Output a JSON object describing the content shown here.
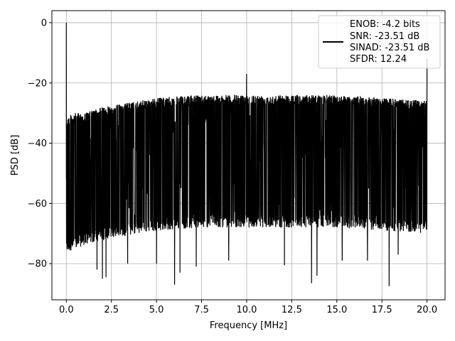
{
  "chart_data": {
    "type": "line",
    "title": "",
    "xlabel": "Frequency [MHz]",
    "ylabel": "PSD [dB]",
    "xlim": [
      -0.8,
      21.0
    ],
    "ylim": [
      -92.0,
      4.0
    ],
    "x_ticks": [
      0.0,
      2.5,
      5.0,
      7.5,
      10.0,
      12.5,
      15.0,
      17.5,
      20.0
    ],
    "x_tick_labels": [
      "0.0",
      "2.5",
      "5.0",
      "7.5",
      "10.0",
      "12.5",
      "15.0",
      "17.5",
      "20.0"
    ],
    "y_ticks": [
      0,
      -20,
      -40,
      -60,
      -80
    ],
    "y_tick_labels": [
      "0",
      "−20",
      "−40",
      "−60",
      "−80"
    ],
    "grid": true,
    "legend_position": "top-right",
    "legend_entries": [
      "ENOB: -4.2 bits",
      "SNR: -23.51 dB",
      "SINAD: -23.51 dB",
      "SFDR: 12.24"
    ],
    "series": [
      {
        "color": "#000000",
        "x_range": [
          0.0,
          20.0
        ],
        "noise_ceiling": [
          [
            0.05,
            -31
          ],
          [
            0.5,
            -30
          ],
          [
            1.0,
            -30
          ],
          [
            2.0,
            -28
          ],
          [
            3.0,
            -27
          ],
          [
            4.0,
            -26
          ],
          [
            5.0,
            -25
          ],
          [
            6.0,
            -24.5
          ],
          [
            7.5,
            -24
          ],
          [
            10.0,
            -24
          ],
          [
            12.5,
            -24
          ],
          [
            15.0,
            -24
          ],
          [
            17.5,
            -25
          ],
          [
            19.0,
            -25.5
          ],
          [
            20.0,
            -26
          ]
        ],
        "noise_floor": [
          [
            0.05,
            -76
          ],
          [
            2.0,
            -72
          ],
          [
            5.0,
            -69
          ],
          [
            7.5,
            -68
          ],
          [
            10.0,
            -68
          ],
          [
            12.5,
            -68
          ],
          [
            15.0,
            -68
          ],
          [
            17.5,
            -69
          ],
          [
            20.0,
            -70
          ]
        ],
        "spikes": [
          {
            "x": 0.0,
            "y": 0.0
          },
          {
            "x": 10.0,
            "y": -17
          },
          {
            "x": 20.0,
            "y": -12
          }
        ],
        "deep_dips": [
          {
            "x": 1.7,
            "y": -82
          },
          {
            "x": 2.0,
            "y": -85
          },
          {
            "x": 2.2,
            "y": -84.5
          },
          {
            "x": 3.4,
            "y": -80
          },
          {
            "x": 5.0,
            "y": -80
          },
          {
            "x": 6.0,
            "y": -87
          },
          {
            "x": 6.3,
            "y": -83
          },
          {
            "x": 7.2,
            "y": -81
          },
          {
            "x": 9.0,
            "y": -79
          },
          {
            "x": 10.0,
            "y": -78
          },
          {
            "x": 12.1,
            "y": -80.5
          },
          {
            "x": 13.6,
            "y": -86.5
          },
          {
            "x": 13.9,
            "y": -84
          },
          {
            "x": 15.3,
            "y": -79
          },
          {
            "x": 16.7,
            "y": -79
          },
          {
            "x": 17.9,
            "y": -87.5
          },
          {
            "x": 18.4,
            "y": -77
          }
        ]
      }
    ]
  }
}
